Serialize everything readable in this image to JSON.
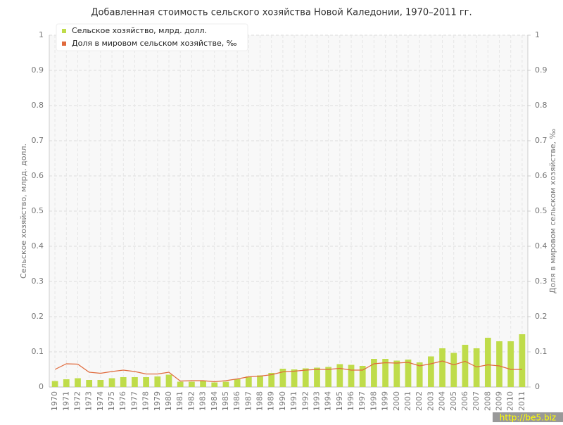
{
  "chart_data": {
    "type": "combo",
    "title": "Добавленная стоимость сельского хозяйства Новой Каледонии, 1970–2011 гг.",
    "y_label": "Сельское хозяйство, млрд. долл.",
    "y2_label": "Доля в мировом сельском хозяйстве, ‰",
    "watermark": "http://be5.biz",
    "legend": "top-left",
    "grid": true,
    "categories": [
      "1970",
      "1971",
      "1972",
      "1973",
      "1974",
      "1975",
      "1976",
      "1977",
      "1978",
      "1979",
      "1980",
      "1981",
      "1982",
      "1983",
      "1984",
      "1985",
      "1986",
      "1987",
      "1988",
      "1989",
      "1990",
      "1991",
      "1992",
      "1993",
      "1994",
      "1995",
      "1996",
      "1997",
      "1998",
      "1999",
      "2000",
      "2001",
      "2002",
      "2003",
      "2004",
      "2005",
      "2006",
      "2007",
      "2008",
      "2009",
      "2010",
      "2011"
    ],
    "series": [
      {
        "name": "Сельское хозяйство, млрд. долл.",
        "type": "bar",
        "color": "#bfdc4a",
        "values": [
          0.017,
          0.022,
          0.025,
          0.02,
          0.02,
          0.025,
          0.028,
          0.028,
          0.028,
          0.03,
          0.035,
          0.015,
          0.015,
          0.017,
          0.013,
          0.015,
          0.022,
          0.03,
          0.033,
          0.04,
          0.052,
          0.05,
          0.053,
          0.055,
          0.057,
          0.065,
          0.063,
          0.06,
          0.08,
          0.08,
          0.075,
          0.078,
          0.07,
          0.087,
          0.11,
          0.097,
          0.12,
          0.11,
          0.14,
          0.13,
          0.13,
          0.15
        ]
      },
      {
        "name": "Доля в мировом сельском хозяйстве, ‰",
        "type": "line",
        "axis": "y2",
        "color": "#e06a3c",
        "values": [
          0.05,
          0.066,
          0.065,
          0.042,
          0.039,
          0.044,
          0.048,
          0.044,
          0.037,
          0.037,
          0.042,
          0.017,
          0.018,
          0.018,
          0.015,
          0.018,
          0.023,
          0.029,
          0.031,
          0.035,
          0.043,
          0.045,
          0.048,
          0.05,
          0.05,
          0.053,
          0.048,
          0.048,
          0.066,
          0.069,
          0.068,
          0.07,
          0.06,
          0.066,
          0.074,
          0.063,
          0.073,
          0.057,
          0.063,
          0.06,
          0.05,
          0.05
        ]
      }
    ],
    "ylim": [
      0,
      1
    ],
    "yticks": [
      0,
      0.1,
      0.2,
      0.3,
      0.4,
      0.5,
      0.6,
      0.7,
      0.8,
      0.9,
      1
    ],
    "y2lim": [
      0,
      1
    ],
    "y2ticks": [
      0,
      0.1,
      0.2,
      0.3,
      0.4,
      0.5,
      0.6,
      0.7,
      0.8,
      0.9,
      1
    ]
  }
}
